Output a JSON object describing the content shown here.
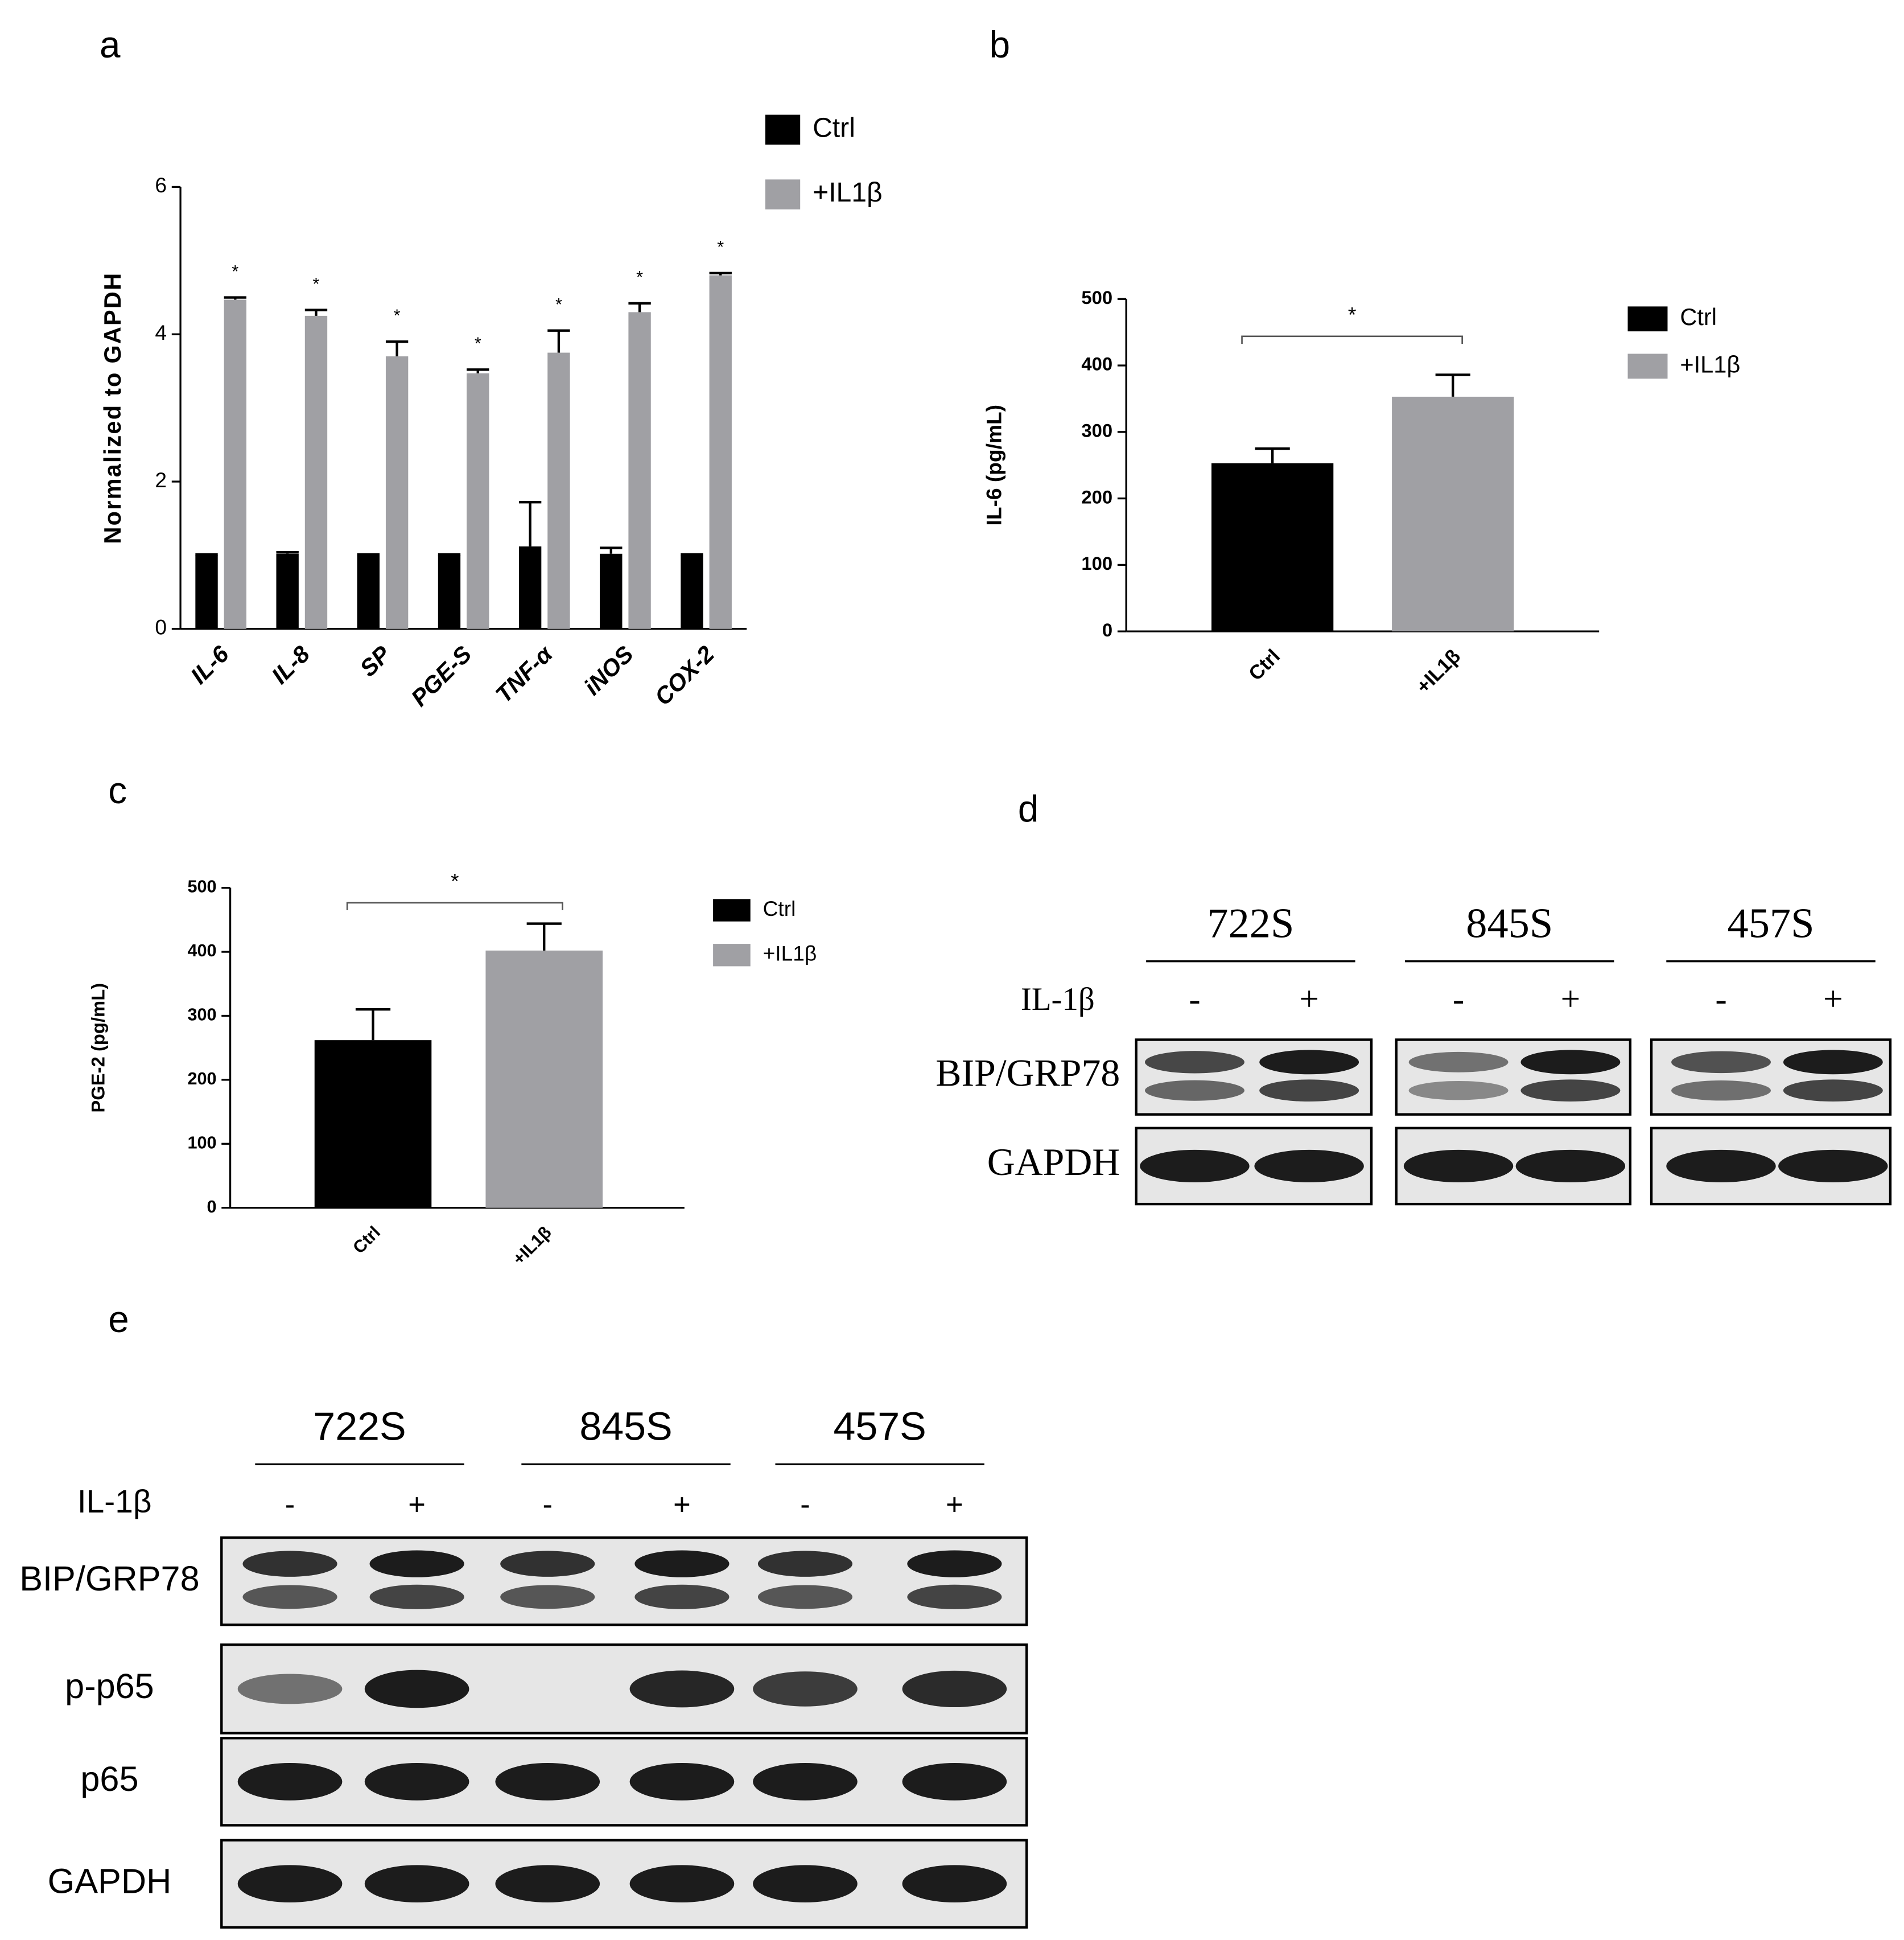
{
  "chart_data": [
    {
      "type": "bar",
      "label": "a",
      "y_label": "Normalized to GAPDH",
      "categories": [
        "IL-6",
        "IL-8",
        "SP",
        "PGE-S",
        "TNF-α",
        "iNOS",
        "COX-2"
      ],
      "ylim": [
        0,
        6
      ],
      "yticks": [
        0,
        2,
        4,
        6
      ],
      "series": [
        {
          "name": "Ctrl",
          "color": "#000000",
          "values": [
            1.0,
            1.02,
            1.0,
            1.0,
            1.12,
            1.02,
            1.0
          ],
          "errors": [
            0.01,
            0.02,
            0.01,
            0.01,
            0.6,
            0.08,
            0.01
          ]
        },
        {
          "name": "+IL1β",
          "color": "#a0a0a4",
          "values": [
            4.47,
            4.25,
            3.7,
            3.47,
            3.75,
            4.3,
            4.8
          ],
          "errors": [
            0.03,
            0.08,
            0.2,
            0.05,
            0.3,
            0.12,
            0.03
          ]
        }
      ],
      "annotations": [
        "*",
        "*",
        "*",
        "*",
        "*",
        "*",
        "*"
      ]
    },
    {
      "type": "bar",
      "label": "b",
      "y_label": "IL-6 (pg/mL)",
      "categories": [
        "Ctrl",
        "+IL1β"
      ],
      "ylim": [
        0,
        500
      ],
      "yticks": [
        0,
        100,
        200,
        300,
        400,
        500
      ],
      "series": [
        {
          "name": "Ctrl",
          "color": "#000000",
          "values": [
            253,
            null
          ],
          "errors": [
            22,
            null
          ]
        },
        {
          "name": "+IL1β",
          "color": "#a0a0a4",
          "values": [
            null,
            353
          ],
          "errors": [
            null,
            33
          ]
        }
      ],
      "significance": "*"
    },
    {
      "type": "bar",
      "label": "c",
      "y_label": "PGE-2 (pg/mL)",
      "categories": [
        "Ctrl",
        "+IL1β"
      ],
      "ylim": [
        0,
        500
      ],
      "yticks": [
        0,
        100,
        200,
        300,
        400,
        500
      ],
      "series": [
        {
          "name": "Ctrl",
          "color": "#000000",
          "values": [
            262,
            null
          ],
          "errors": [
            48,
            null
          ]
        },
        {
          "name": "+IL1β",
          "color": "#a0a0a4",
          "values": [
            null,
            402
          ],
          "errors": [
            null,
            42
          ]
        }
      ],
      "significance": "*"
    }
  ],
  "blots": [
    {
      "label": "d",
      "cell_lines": [
        "722S",
        "845S",
        "457S"
      ],
      "treatment": "IL-1β",
      "lanes": [
        "-",
        "+",
        "-",
        "+",
        "-",
        "+"
      ],
      "rows": [
        "BIP/GRP78",
        "GAPDH"
      ]
    },
    {
      "label": "e",
      "cell_lines": [
        "722S",
        "845S",
        "457S"
      ],
      "treatment": "IL-1β",
      "lanes": [
        "-",
        "+",
        "-",
        "+",
        "-",
        "+"
      ],
      "rows": [
        "BIP/GRP78",
        "p-p65",
        "p65",
        "GAPDH"
      ]
    }
  ]
}
